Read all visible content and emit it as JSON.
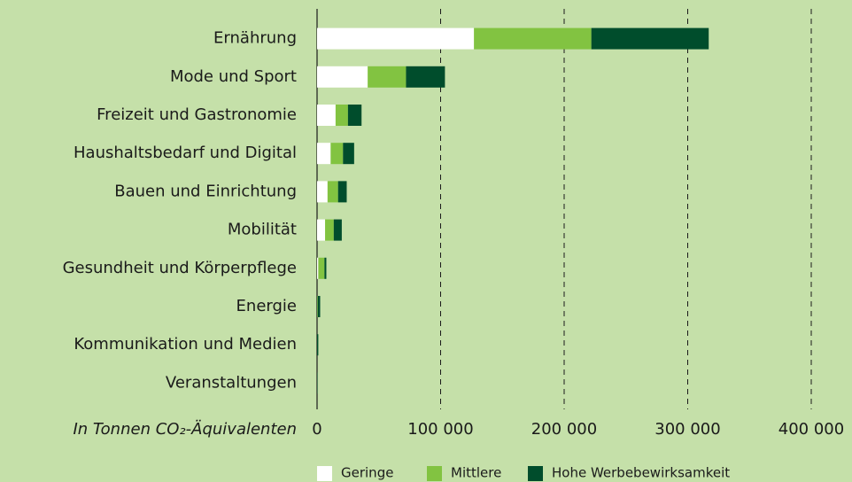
{
  "chart_data": {
    "type": "stacked-bar-horizontal",
    "x_label": "In Tonnen CO₂-Äquivalenten",
    "categories": [
      "Ernährung",
      "Mode und Sport",
      "Freizeit und Gastronomie",
      "Haushaltsbedarf und Digital",
      "Bauen und Einrichtung",
      "Mobilität",
      "Gesundheit und Körperpflege",
      "Energie",
      "Kommunikation und Medien",
      "Veranstaltungen"
    ],
    "series": [
      {
        "name": "Geringe",
        "color": "#ffffff",
        "values": [
          127000,
          41000,
          15000,
          11000,
          8500,
          6500,
          1000,
          0,
          0,
          0
        ]
      },
      {
        "name": "Mittlere",
        "color": "#82c341",
        "values": [
          95000,
          31000,
          10000,
          10000,
          8500,
          7000,
          5000,
          500,
          0,
          0
        ]
      },
      {
        "name": "Hohe Werbebewirksamkeit",
        "color": "#004d2c",
        "values": [
          95000,
          31500,
          11000,
          9000,
          7000,
          6500,
          1500,
          2000,
          1000,
          300
        ]
      }
    ],
    "xlim": [
      0,
      400000
    ],
    "xticks": [
      0,
      {
        "value": 100000,
        "label": "100 000"
      },
      {
        "value": 200000,
        "label": "200 000"
      },
      {
        "value": 300000,
        "label": "300 000"
      },
      {
        "value": 400000,
        "label": "400 000"
      }
    ],
    "grid": true,
    "legend": "bottom"
  }
}
